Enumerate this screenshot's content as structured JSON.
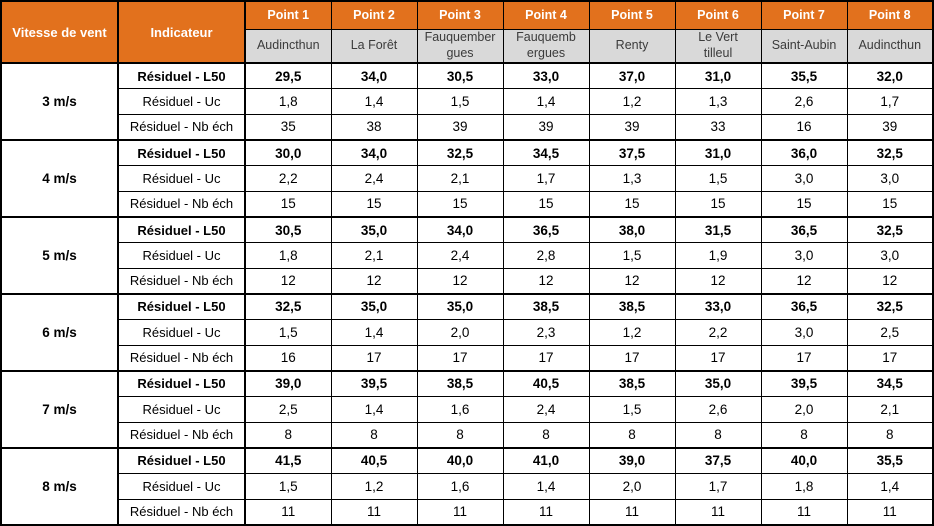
{
  "colors": {
    "header_bg": "#E2711D",
    "header_text": "#FFFFFF",
    "subheader_bg": "#D9D9D9",
    "border": "#000000",
    "body_text": "#000000"
  },
  "header": {
    "col1": "Vitesse de vent",
    "col2": "Indicateur",
    "points": [
      "Point 1",
      "Point 2",
      "Point 3",
      "Point 4",
      "Point 5",
      "Point 6",
      "Point 7",
      "Point 8"
    ],
    "locations": [
      "Audincthun",
      "La Forêt",
      "Fauquember\ngues",
      "Fauquemb\nergues",
      "Renty",
      "Le Vert\ntilleul",
      "Saint-Aubin",
      "Audincthun"
    ]
  },
  "indicators": [
    "Résiduel - L50",
    "Résiduel - Uc",
    "Résiduel - Nb éch"
  ],
  "groups": [
    {
      "speed": "3 m/s",
      "values": [
        [
          "29,5",
          "34,0",
          "30,5",
          "33,0",
          "37,0",
          "31,0",
          "35,5",
          "32,0"
        ],
        [
          "1,8",
          "1,4",
          "1,5",
          "1,4",
          "1,2",
          "1,3",
          "2,6",
          "1,7"
        ],
        [
          "35",
          "38",
          "39",
          "39",
          "39",
          "33",
          "16",
          "39"
        ]
      ]
    },
    {
      "speed": "4 m/s",
      "values": [
        [
          "30,0",
          "34,0",
          "32,5",
          "34,5",
          "37,5",
          "31,0",
          "36,0",
          "32,5"
        ],
        [
          "2,2",
          "2,4",
          "2,1",
          "1,7",
          "1,3",
          "1,5",
          "3,0",
          "3,0"
        ],
        [
          "15",
          "15",
          "15",
          "15",
          "15",
          "15",
          "15",
          "15"
        ]
      ]
    },
    {
      "speed": "5 m/s",
      "values": [
        [
          "30,5",
          "35,0",
          "34,0",
          "36,5",
          "38,0",
          "31,5",
          "36,5",
          "32,5"
        ],
        [
          "1,8",
          "2,1",
          "2,4",
          "2,8",
          "1,5",
          "1,9",
          "3,0",
          "3,0"
        ],
        [
          "12",
          "12",
          "12",
          "12",
          "12",
          "12",
          "12",
          "12"
        ]
      ]
    },
    {
      "speed": "6 m/s",
      "values": [
        [
          "32,5",
          "35,0",
          "35,0",
          "38,5",
          "38,5",
          "33,0",
          "36,5",
          "32,5"
        ],
        [
          "1,5",
          "1,4",
          "2,0",
          "2,3",
          "1,2",
          "2,2",
          "3,0",
          "2,5"
        ],
        [
          "16",
          "17",
          "17",
          "17",
          "17",
          "17",
          "17",
          "17"
        ]
      ]
    },
    {
      "speed": "7 m/s",
      "values": [
        [
          "39,0",
          "39,5",
          "38,5",
          "40,5",
          "38,5",
          "35,0",
          "39,5",
          "34,5"
        ],
        [
          "2,5",
          "1,4",
          "1,6",
          "2,4",
          "1,5",
          "2,6",
          "2,0",
          "2,1"
        ],
        [
          "8",
          "8",
          "8",
          "8",
          "8",
          "8",
          "8",
          "8"
        ]
      ]
    },
    {
      "speed": "8 m/s",
      "values": [
        [
          "41,5",
          "40,5",
          "40,0",
          "41,0",
          "39,0",
          "37,5",
          "40,0",
          "35,5"
        ],
        [
          "1,5",
          "1,2",
          "1,6",
          "1,4",
          "2,0",
          "1,7",
          "1,8",
          "1,4"
        ],
        [
          "11",
          "11",
          "11",
          "11",
          "11",
          "11",
          "11",
          "11"
        ]
      ]
    }
  ]
}
